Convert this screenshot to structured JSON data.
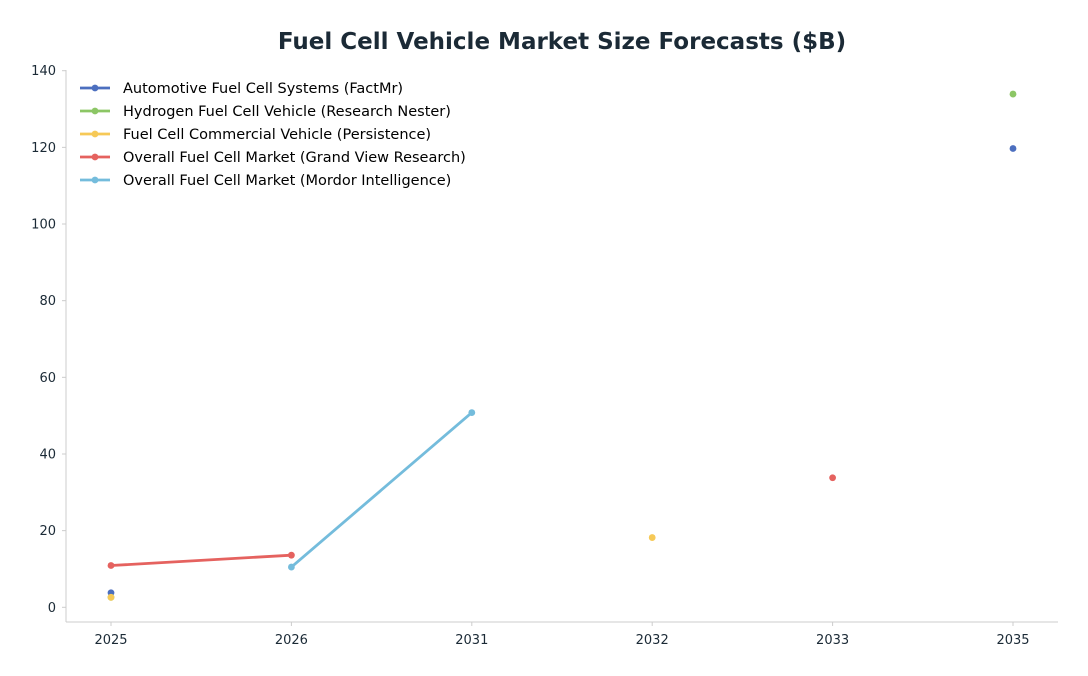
{
  "chart_data": {
    "type": "line",
    "title": "Fuel Cell Vehicle Market Size Forecasts ($B)",
    "xlabel": "",
    "ylabel": "",
    "categories": [
      "2025",
      "2026",
      "2031",
      "2032",
      "2033",
      "2035"
    ],
    "ylim": [
      -4,
      140
    ],
    "yticks": [
      0,
      20,
      40,
      60,
      80,
      100,
      120,
      140
    ],
    "grid": false,
    "legend_position": "top-left",
    "series": [
      {
        "name": "Automotive Fuel Cell Systems (FactMr)",
        "color": "#4c6fbf",
        "points": [
          {
            "x": "2025",
            "y": 3.8
          },
          {
            "x": "2035",
            "y": 119.7
          }
        ]
      },
      {
        "name": "Hydrogen Fuel Cell Vehicle (Research Nester)",
        "color": "#8cc665",
        "points": [
          {
            "x": "2025",
            "y": 2.6
          },
          {
            "x": "2035",
            "y": 133.9
          }
        ]
      },
      {
        "name": "Fuel Cell Commercial Vehicle (Persistence)",
        "color": "#f6c957",
        "points": [
          {
            "x": "2025",
            "y": 2.6
          },
          {
            "x": "2032",
            "y": 18.2
          }
        ]
      },
      {
        "name": "Overall Fuel Cell Market (Grand View Research)",
        "color": "#e5625f",
        "points": [
          {
            "x": "2025",
            "y": 10.9
          },
          {
            "x": "2026",
            "y": 13.6
          },
          {
            "x": "2033",
            "y": 33.8
          }
        ]
      },
      {
        "name": "Overall Fuel Cell Market (Mordor Intelligence)",
        "color": "#74bcdc",
        "points": [
          {
            "x": "2026",
            "y": 10.5
          },
          {
            "x": "2031",
            "y": 50.8
          }
        ]
      }
    ]
  }
}
